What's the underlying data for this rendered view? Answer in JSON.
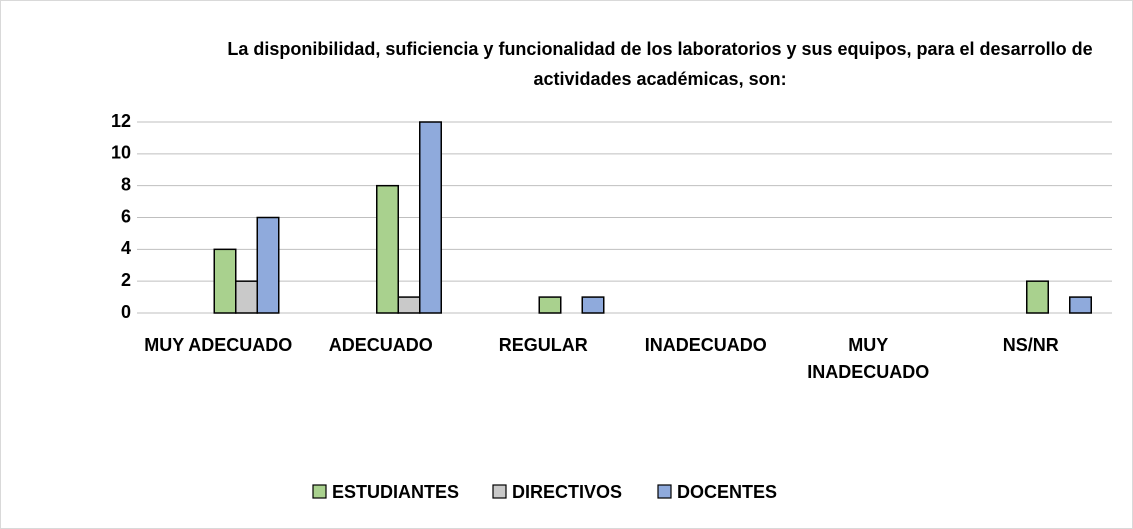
{
  "chart_data": {
    "type": "bar",
    "title": "La disponibilidad, suficiencia y funcionalidad de los laboratorios y sus equipos, para el desarrollo de actividades académicas, son:",
    "categories": [
      "MUY ADECUADO",
      "ADECUADO",
      "REGULAR",
      "INADECUADO",
      "MUY INADECUADO",
      "NS/NR"
    ],
    "series": [
      {
        "name": "ESTUDIANTES",
        "color": "#a9d18e",
        "values": [
          4,
          8,
          1,
          0,
          0,
          2
        ]
      },
      {
        "name": "DIRECTIVOS",
        "color": "#c9c9c9",
        "values": [
          2,
          1,
          0,
          0,
          0,
          0
        ]
      },
      {
        "name": "DOCENTES",
        "color": "#8faadc",
        "values": [
          6,
          12,
          1,
          0,
          0,
          1
        ]
      }
    ],
    "ylim": [
      0,
      12
    ],
    "yticks": [
      0,
      2,
      4,
      6,
      8,
      10,
      12
    ],
    "grid": true,
    "legend": "bottom"
  }
}
